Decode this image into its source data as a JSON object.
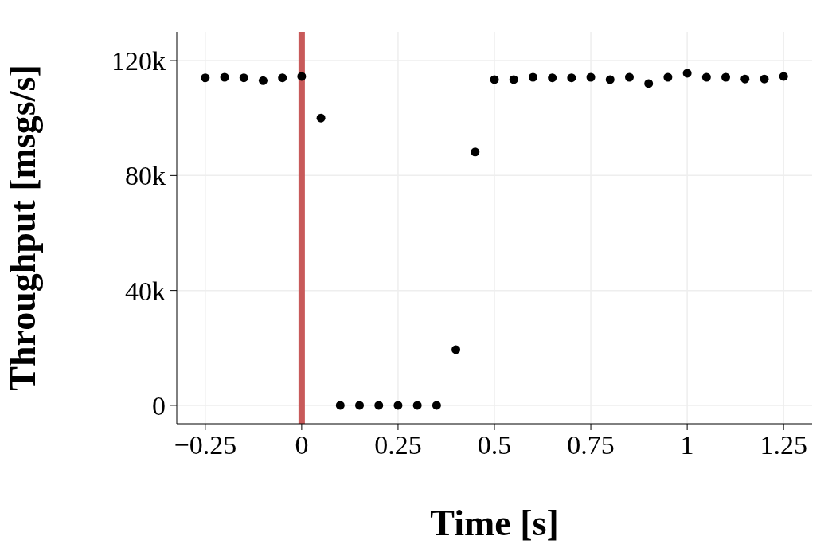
{
  "chart_data": {
    "type": "scatter",
    "xlabel": "Time [s]",
    "ylabel": "Throughput [msgs/s]",
    "x": [
      -0.25,
      -0.2,
      -0.15,
      -0.1,
      -0.05,
      0,
      0.05,
      0.1,
      0.15,
      0.2,
      0.25,
      0.3,
      0.35,
      0.4,
      0.45,
      0.5,
      0.55,
      0.6,
      0.65,
      0.7,
      0.75,
      0.8,
      0.85,
      0.9,
      0.95,
      1,
      1.05,
      1.1,
      1.15,
      1.2,
      1.25
    ],
    "series": [
      {
        "color": "#000000",
        "values": [
          114000,
          114200,
          114000,
          113000,
          114000,
          114500,
          100000,
          0,
          0,
          0,
          0,
          0,
          0,
          19400,
          88200,
          113400,
          113400,
          114200,
          114000,
          114000,
          114200,
          113400,
          114200,
          112000,
          114200,
          115600,
          114200,
          114200,
          113600,
          113600,
          114500
        ]
      }
    ],
    "xlim": [
      -0.324,
      1.324
    ],
    "xticks": [
      {
        "value": -0.25,
        "label": "−0.25"
      },
      0,
      0.25,
      0.5,
      0.75,
      1,
      1.25
    ],
    "ylim": [
      -6400,
      130000
    ],
    "yticks": [
      {
        "value": 0,
        "label": "0"
      },
      {
        "value": 40000,
        "label": "40k"
      },
      {
        "value": 80000,
        "label": "80k"
      },
      {
        "value": 120000,
        "label": "120k"
      }
    ],
    "ref_lines": [
      {
        "axis": "x",
        "value": 0,
        "color": "#c85a5a"
      }
    ],
    "grid": true,
    "marker": "circle",
    "legend": false
  }
}
